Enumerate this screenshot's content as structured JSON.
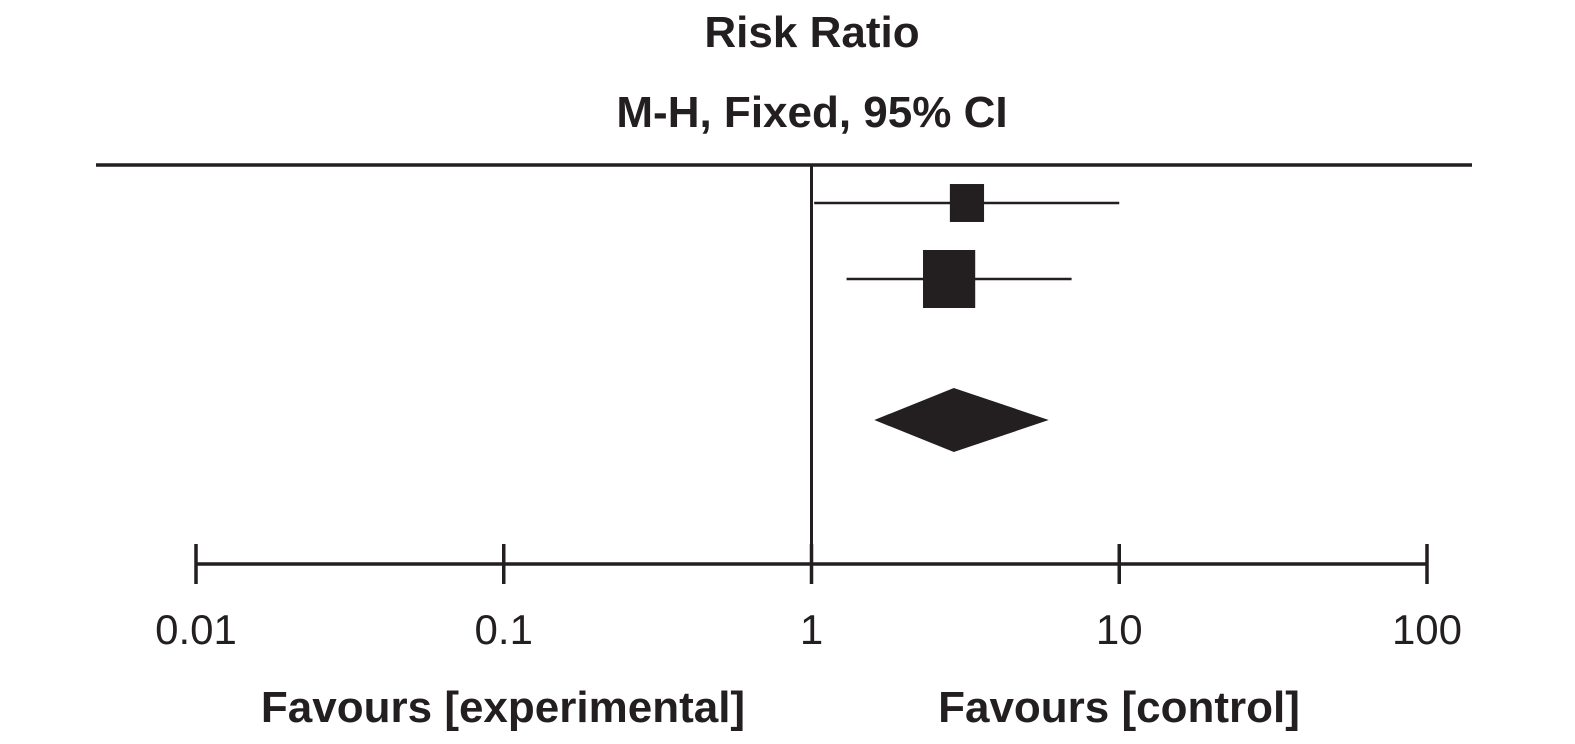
{
  "chart_data": {
    "type": "forest",
    "title": "Risk Ratio",
    "subtitle": "M-H, Fixed, 95% CI",
    "x_scale": "log",
    "xlim": [
      0.01,
      100
    ],
    "null_value": 1,
    "ticks": [
      {
        "value": 0.01,
        "label": "0.01"
      },
      {
        "value": 0.1,
        "label": "0.1"
      },
      {
        "value": 1,
        "label": "1"
      },
      {
        "value": 10,
        "label": "10"
      },
      {
        "value": 100,
        "label": "100"
      }
    ],
    "favours_left": "Favours [experimental]",
    "favours_right": "Favours [control]",
    "studies": [
      {
        "estimate": 3.2,
        "ci_low": 1.02,
        "ci_high": 10.0,
        "weight": 0.3
      },
      {
        "estimate": 2.8,
        "ci_low": 1.3,
        "ci_high": 7.0,
        "weight": 0.7
      }
    ],
    "pooled": {
      "estimate": 2.9,
      "ci_low": 1.6,
      "ci_high": 5.9
    },
    "colors": {
      "ink": "#231f20",
      "background": "#ffffff"
    }
  }
}
